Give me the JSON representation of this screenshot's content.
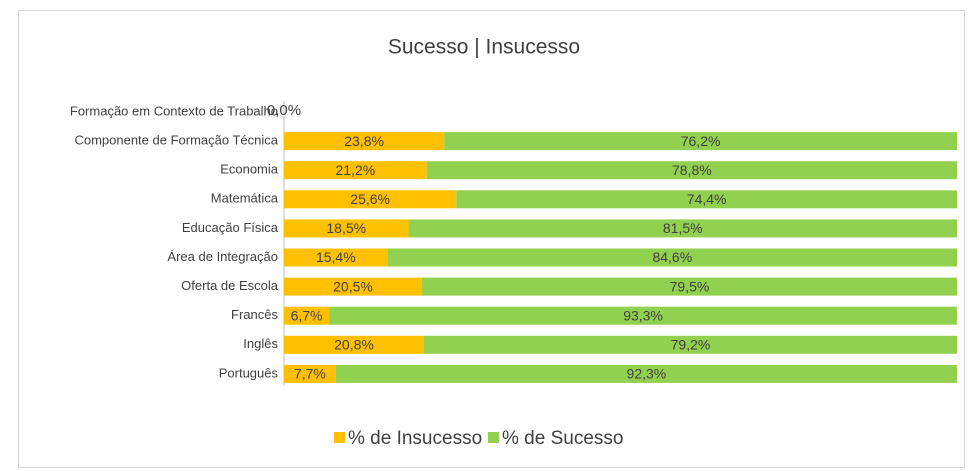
{
  "chart_data": {
    "type": "stacked_bar_horizontal",
    "title": "Sucesso | Insucesso",
    "categories": [
      "Formação em Contexto de Trabalho",
      "Componente de Formação Técnica",
      "Economia",
      "Matemática",
      "Educação Física",
      "Área de Integração",
      "Oferta de Escola",
      "Francês",
      "Inglês",
      "Português"
    ],
    "series": [
      {
        "name": "% de Insucesso",
        "color": "#FFC000",
        "values": [
          0,
          23.8,
          21.2,
          25.6,
          18.5,
          15.4,
          20.5,
          6.7,
          20.8,
          7.7
        ],
        "value_labels": [
          "0,0%",
          "23,8%",
          "21,2%",
          "25,6%",
          "18,5%",
          "15,4%",
          "20,5%",
          "6,7%",
          "20,8%",
          "7,7%"
        ]
      },
      {
        "name": "% de Sucesso",
        "color": "#92D050",
        "values": [
          null,
          76.2,
          78.8,
          74.4,
          81.5,
          84.6,
          79.5,
          93.3,
          79.2,
          92.3
        ],
        "value_labels": [
          null,
          "76,2%",
          "78,8%",
          "74,4%",
          "81,5%",
          "84,6%",
          "79,5%",
          "93,3%",
          "79,2%",
          "92,3%"
        ]
      }
    ],
    "xlim": [
      0,
      100
    ],
    "legend": "bottom"
  }
}
